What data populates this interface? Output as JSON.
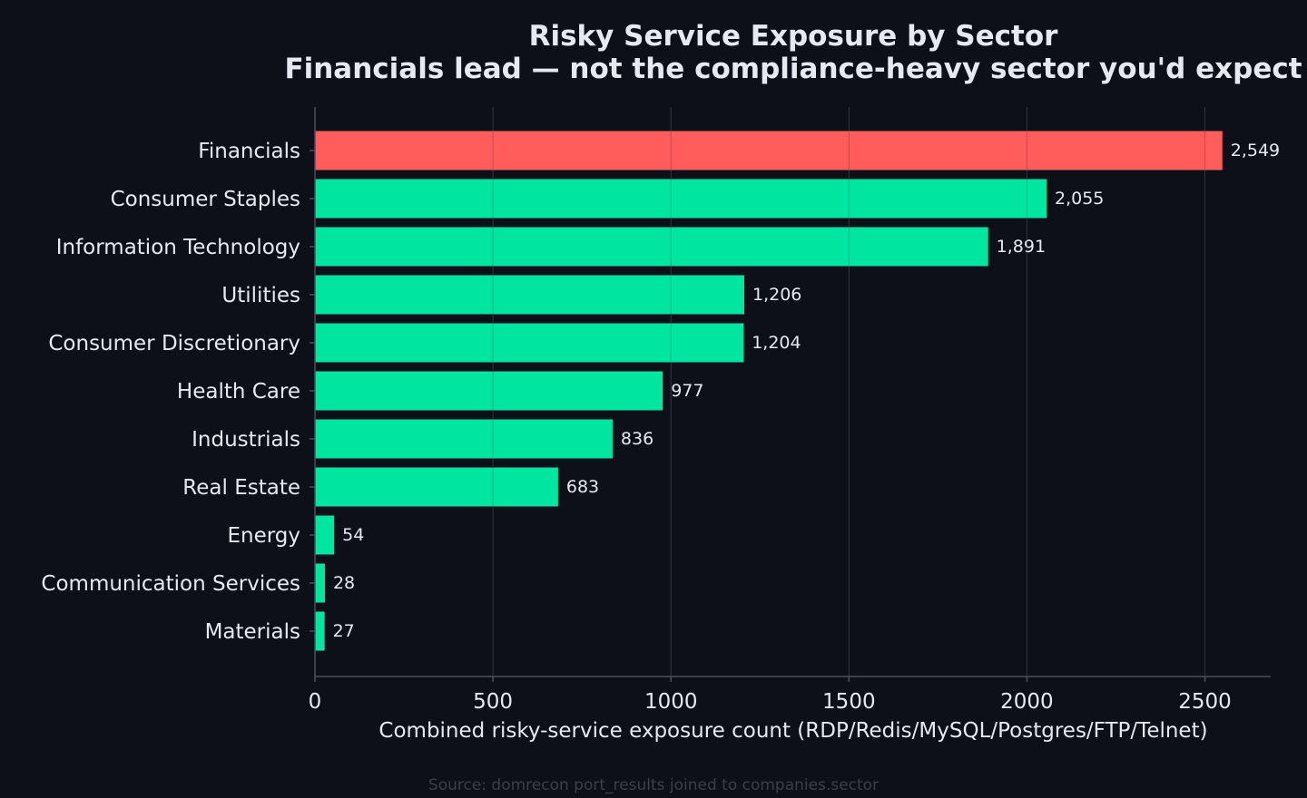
{
  "colors": {
    "background": "#0d1018",
    "text": "#e6e9ef",
    "highlight_bar": "#ff5c5c",
    "bar": "#00e5a0",
    "grid": "#2a2f3a",
    "axis": "#4a4f5a",
    "source": "#3a3f4a"
  },
  "chart_data": {
    "type": "bar",
    "orientation": "horizontal",
    "title": "Risky Service Exposure by Sector",
    "subtitle": "Financials lead — not the compliance-heavy sector you'd expect",
    "xlabel": "Combined risky-service exposure count (RDP/Redis/MySQL/Postgres/FTP/Telnet)",
    "ylabel": "",
    "xlim": [
      0,
      2680
    ],
    "xticks": [
      0,
      500,
      1000,
      1500,
      2000,
      2500
    ],
    "grid": true,
    "categories": [
      "Financials",
      "Consumer Staples",
      "Information Technology",
      "Utilities",
      "Consumer Discretionary",
      "Health Care",
      "Industrials",
      "Real Estate",
      "Energy",
      "Communication Services",
      "Materials"
    ],
    "values": [
      2549,
      2055,
      1891,
      1206,
      1204,
      977,
      836,
      683,
      54,
      28,
      27
    ],
    "value_labels": [
      "2,549",
      "2,055",
      "1,891",
      "1,206",
      "1,204",
      "977",
      "836",
      "683",
      "54",
      "28",
      "27"
    ],
    "highlight_category": "Financials"
  },
  "source_note": "Source: domrecon port_results joined to companies.sector"
}
